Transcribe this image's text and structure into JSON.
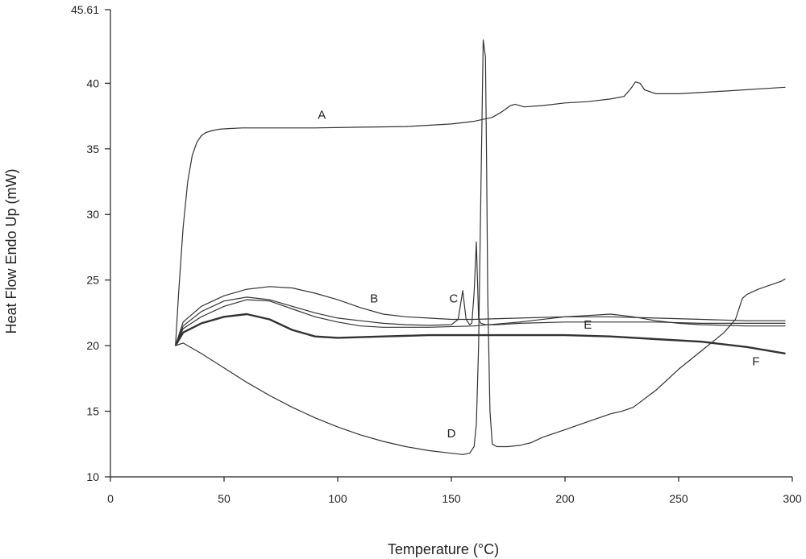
{
  "chart_data": {
    "type": "line",
    "xlabel": "Temperature (°C)",
    "ylabel": "Heat Flow Endo Up (mW)",
    "xlim": [
      0,
      300
    ],
    "ylim": [
      10,
      45.61
    ],
    "x_ticks": [
      "0",
      "50",
      "100",
      "150",
      "200",
      "250",
      "300"
    ],
    "y_ticks": [
      "10",
      "15",
      "20",
      "25",
      "30",
      "35",
      "40",
      "45.61"
    ],
    "grid": false,
    "legend": "none",
    "line_color": "#333333",
    "series": [
      {
        "name": "A",
        "label_at": [
          93,
          37.3
        ],
        "x": [
          28.6,
          30,
          32,
          34,
          36,
          38,
          40,
          42,
          45,
          48,
          52,
          58,
          70,
          90,
          110,
          130,
          150,
          160,
          168,
          172,
          176,
          178,
          182,
          190,
          200,
          210,
          220,
          226,
          229,
          231,
          233,
          235,
          240,
          250,
          270,
          297
        ],
        "y": [
          20.0,
          24.0,
          29.0,
          32.5,
          34.5,
          35.5,
          36.0,
          36.25,
          36.4,
          36.5,
          36.55,
          36.6,
          36.6,
          36.6,
          36.65,
          36.7,
          36.9,
          37.1,
          37.4,
          37.8,
          38.3,
          38.4,
          38.2,
          38.3,
          38.5,
          38.6,
          38.8,
          39.0,
          39.6,
          40.1,
          40.0,
          39.5,
          39.2,
          39.2,
          39.4,
          39.7
        ]
      },
      {
        "name": "B",
        "label_at": [
          116,
          23.3
        ],
        "x": [
          28.6,
          32,
          40,
          50,
          60,
          70,
          80,
          90,
          100,
          110,
          120,
          130,
          140,
          150,
          160,
          180,
          200,
          220,
          240,
          260,
          280,
          297
        ],
        "y": [
          20.0,
          21.8,
          23.0,
          23.8,
          24.3,
          24.5,
          24.4,
          24.0,
          23.5,
          22.9,
          22.4,
          22.2,
          22.1,
          22.0,
          22.0,
          22.1,
          22.2,
          22.2,
          22.1,
          22.0,
          21.9,
          21.9
        ]
      },
      {
        "name": "C",
        "label_at": [
          151,
          23.3
        ],
        "x": [
          28.6,
          32,
          40,
          50,
          60,
          70,
          80,
          90,
          100,
          110,
          120,
          130,
          140,
          150,
          153,
          155,
          156.5,
          158,
          159,
          160,
          161,
          161.5,
          162,
          163,
          165,
          170,
          180,
          200,
          220,
          240,
          260,
          280,
          297
        ],
        "y": [
          20.0,
          21.5,
          22.6,
          23.4,
          23.7,
          23.5,
          23.0,
          22.5,
          22.1,
          21.9,
          21.7,
          21.6,
          21.55,
          21.6,
          22.0,
          24.2,
          22.0,
          21.6,
          21.7,
          24.0,
          27.9,
          25.0,
          22.0,
          21.7,
          21.6,
          21.6,
          21.7,
          21.8,
          21.8,
          21.8,
          21.7,
          21.7,
          21.7
        ]
      },
      {
        "name": "D",
        "label_at": [
          150,
          13.0
        ],
        "x": [
          28.6,
          32,
          40,
          50,
          60,
          70,
          80,
          90,
          100,
          110,
          120,
          130,
          140,
          150,
          155,
          158,
          160,
          161,
          162,
          163,
          164,
          165,
          165.5,
          166,
          167,
          168,
          170,
          175,
          180,
          185,
          190,
          200,
          210,
          220,
          225,
          230,
          240,
          250,
          260,
          270,
          275,
          278,
          280,
          285,
          290,
          295,
          297
        ],
        "y": [
          20.0,
          20.2,
          19.4,
          18.3,
          17.2,
          16.2,
          15.3,
          14.5,
          13.8,
          13.2,
          12.7,
          12.3,
          12.0,
          11.8,
          11.7,
          11.8,
          12.3,
          14.0,
          20.0,
          32.0,
          43.3,
          42.0,
          34.0,
          24.0,
          15.0,
          12.5,
          12.3,
          12.3,
          12.4,
          12.6,
          13.0,
          13.6,
          14.2,
          14.8,
          15.0,
          15.3,
          16.6,
          18.2,
          19.6,
          21.0,
          22.0,
          23.6,
          23.9,
          24.3,
          24.6,
          24.9,
          25.1
        ]
      },
      {
        "name": "E",
        "label_at": [
          210,
          21.3
        ],
        "x": [
          28.6,
          32,
          40,
          50,
          60,
          70,
          80,
          90,
          100,
          110,
          120,
          140,
          160,
          180,
          200,
          210,
          220,
          230,
          240,
          250,
          260,
          280,
          297
        ],
        "y": [
          20.0,
          21.3,
          22.2,
          23.0,
          23.5,
          23.4,
          22.8,
          22.2,
          21.8,
          21.5,
          21.4,
          21.4,
          21.5,
          21.8,
          22.2,
          22.3,
          22.4,
          22.2,
          21.9,
          21.7,
          21.6,
          21.5,
          21.5
        ]
      },
      {
        "name": "F",
        "label_at": [
          284,
          18.5
        ],
        "x": [
          28.6,
          32,
          40,
          50,
          60,
          70,
          80,
          90,
          100,
          120,
          140,
          160,
          180,
          200,
          220,
          240,
          260,
          280,
          297
        ],
        "y": [
          20.0,
          21.0,
          21.7,
          22.2,
          22.4,
          22.0,
          21.2,
          20.7,
          20.6,
          20.7,
          20.8,
          20.8,
          20.8,
          20.8,
          20.7,
          20.5,
          20.3,
          19.9,
          19.4
        ]
      }
    ]
  }
}
